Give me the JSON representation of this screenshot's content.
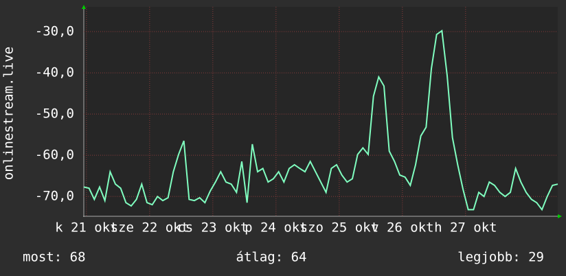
{
  "chart_data": {
    "type": "line",
    "ylabel": "onlinestream.live",
    "x": [
      0,
      2,
      4,
      6,
      8,
      10,
      12,
      14,
      16,
      18,
      20,
      22,
      24,
      26,
      28,
      30,
      32,
      34,
      36,
      38,
      40,
      42,
      44,
      46,
      48,
      50,
      52,
      54,
      56,
      58,
      60,
      62,
      64,
      66,
      68,
      70,
      72,
      74,
      76,
      78,
      80,
      82,
      84,
      86,
      88,
      90,
      92,
      94,
      96,
      98,
      100,
      102,
      104,
      106,
      108,
      110,
      112,
      114,
      116,
      118,
      120,
      122,
      124,
      126,
      128,
      130,
      132,
      134,
      136,
      138,
      140,
      142,
      144,
      146,
      148,
      150,
      152,
      154,
      156,
      158,
      160,
      162,
      164,
      166,
      168,
      170,
      172,
      174,
      176,
      178,
      180
    ],
    "series": [
      {
        "name": "onlinestream.live",
        "color": "#80ffc0",
        "values": [
          -67.7,
          -68,
          -70.7,
          -67.7,
          -71,
          -64,
          -67,
          -68,
          -71.5,
          -72.3,
          -70.7,
          -67,
          -71.5,
          -72,
          -70,
          -71,
          -70.3,
          -64,
          -59.8,
          -56.5,
          -70.7,
          -71,
          -70.3,
          -71.5,
          -68.7,
          -66.5,
          -64,
          -66.5,
          -67,
          -69,
          -61.5,
          -71.5,
          -57.3,
          -64,
          -63.2,
          -66.5,
          -65.7,
          -64,
          -66.5,
          -63.2,
          -62.3,
          -63.2,
          -64,
          -61.5,
          -64,
          -66.5,
          -69,
          -63.2,
          -62.3,
          -64.8,
          -66.5,
          -65.7,
          -59.8,
          -58.2,
          -59.8,
          -45.7,
          -41,
          -43.2,
          -59,
          -61.5,
          -64.8,
          -65.3,
          -67.3,
          -62.3,
          -55.3,
          -53.2,
          -39,
          -30.7,
          -29.8,
          -40.7,
          -55.7,
          -62.3,
          -68.2,
          -73.2,
          -73.2,
          -69,
          -70,
          -66.5,
          -67.3,
          -69,
          -70,
          -69,
          -63.2,
          -66.5,
          -69,
          -70.7,
          -71.5,
          -73.2,
          -70,
          -67.3,
          -67
        ]
      }
    ],
    "xlim": [
      0,
      180
    ],
    "xticks": [
      {
        "value": 1,
        "label": "k 21 okt"
      },
      {
        "value": 25,
        "label": "sze 22 okt"
      },
      {
        "value": 49,
        "label": "cs 23 okt"
      },
      {
        "value": 73,
        "label": "p 24 okt"
      },
      {
        "value": 97,
        "label": "szo 25 okt"
      },
      {
        "value": 121,
        "label": "v 26 okt"
      },
      {
        "value": 145,
        "label": "h 27 okt"
      }
    ],
    "ylim": [
      -74.8,
      -24
    ],
    "yticks": [
      {
        "value": -30,
        "label": "-30,0"
      },
      {
        "value": -40,
        "label": "-40,0"
      },
      {
        "value": -50,
        "label": "-50,0"
      },
      {
        "value": -60,
        "label": "-60,0"
      },
      {
        "value": -70,
        "label": "-70,0"
      }
    ],
    "grid": true,
    "footer": [
      "most: 68",
      "átlag: 64",
      "legjobb: 29"
    ]
  }
}
